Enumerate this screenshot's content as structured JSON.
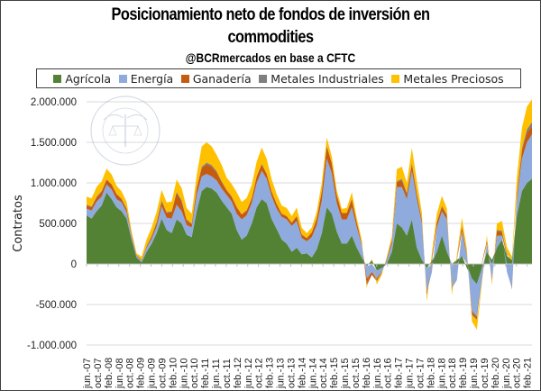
{
  "chart_data": {
    "type": "area",
    "stacked": true,
    "title": "Posicionamiento neto de fondos de inversión en commodities",
    "title_line1": "Posicionamiento neto de fondos de inversión en",
    "title_line2": "commodities",
    "subtitle": "@BCRmercados en base a CFTC",
    "xlabel": "",
    "ylabel": "Contratos",
    "ylim": [
      -1000000,
      2000000
    ],
    "yticks": [
      2000000,
      1500000,
      1000000,
      500000,
      0,
      -500000,
      -1000000
    ],
    "ytick_labels": [
      "2.000.000",
      "1.500.000",
      "1.000.000",
      "500.000",
      "0",
      "-500.000",
      "-1.000.000"
    ],
    "grid": true,
    "legend_position": "top",
    "xtick_labels": [
      "jun.-07",
      "oct.-07",
      "feb.-08",
      "jun.-08",
      "oct.-08",
      "feb.-09",
      "jun.-09",
      "oct.-09",
      "feb.-10",
      "jun.-10",
      "oct.-10",
      "feb.-11",
      "jun.-11",
      "oct.-11",
      "feb.-12",
      "jun.-12",
      "oct.-12",
      "feb.-13",
      "jun.-13",
      "oct.-13",
      "feb.-14",
      "jun.-14",
      "oct.-14",
      "feb.-15",
      "jun.-15",
      "oct.-15",
      "feb.-16",
      "jun.-16",
      "oct.-16",
      "feb.-17",
      "jun.-17",
      "oct.-17",
      "feb.-18",
      "jun.-18",
      "oct.-18",
      "feb.-19",
      "jun.-19",
      "oct.-19",
      "feb.-20",
      "jun.-20",
      "oct.-20",
      "feb.-21"
    ],
    "x_step": "2 months",
    "series": [
      {
        "name": "Agrícola",
        "color": "#548235",
        "values": [
          600000,
          560000,
          650000,
          720000,
          880000,
          800000,
          700000,
          650000,
          560000,
          300000,
          80000,
          20000,
          150000,
          250000,
          380000,
          560000,
          420000,
          380000,
          550000,
          500000,
          360000,
          330000,
          650000,
          900000,
          950000,
          930000,
          880000,
          780000,
          700000,
          620000,
          420000,
          300000,
          350000,
          500000,
          700000,
          800000,
          750000,
          550000,
          430000,
          300000,
          250000,
          150000,
          200000,
          120000,
          130000,
          80000,
          180000,
          380000,
          700000,
          620000,
          400000,
          250000,
          250000,
          350000,
          200000,
          80000,
          -30000,
          50000,
          -80000,
          -50000,
          0,
          150000,
          500000,
          450000,
          350000,
          550000,
          200000,
          50000,
          -50000,
          40000,
          150000,
          350000,
          150000,
          0,
          50000,
          100000,
          -50000,
          -180000,
          -250000,
          -50000,
          150000,
          50000,
          200000,
          300000,
          100000,
          50000,
          600000,
          900000,
          1000000,
          1050000
        ]
      },
      {
        "name": "Energía",
        "color": "#8faadc",
        "values": [
          80000,
          100000,
          120000,
          110000,
          100000,
          120000,
          100000,
          110000,
          80000,
          40000,
          20000,
          20000,
          50000,
          60000,
          80000,
          150000,
          150000,
          180000,
          180000,
          150000,
          120000,
          120000,
          200000,
          180000,
          160000,
          150000,
          150000,
          150000,
          150000,
          150000,
          200000,
          250000,
          250000,
          250000,
          300000,
          350000,
          300000,
          280000,
          250000,
          280000,
          300000,
          320000,
          330000,
          200000,
          150000,
          250000,
          300000,
          400000,
          600000,
          500000,
          350000,
          300000,
          300000,
          350000,
          250000,
          150000,
          -150000,
          -100000,
          -100000,
          -50000,
          50000,
          100000,
          450000,
          500000,
          450000,
          600000,
          600000,
          450000,
          -300000,
          -100000,
          300000,
          300000,
          400000,
          -300000,
          -200000,
          300000,
          100000,
          -400000,
          -400000,
          -150000,
          100000,
          -200000,
          150000,
          50000,
          -100000,
          -300000,
          200000,
          400000,
          500000,
          550000
        ]
      },
      {
        "name": "Ganadería",
        "color": "#c55a11",
        "values": [
          40000,
          40000,
          50000,
          60000,
          60000,
          60000,
          60000,
          40000,
          40000,
          20000,
          10000,
          10000,
          20000,
          30000,
          50000,
          60000,
          60000,
          80000,
          150000,
          120000,
          60000,
          40000,
          80000,
          100000,
          120000,
          120000,
          100000,
          80000,
          60000,
          60000,
          80000,
          60000,
          60000,
          60000,
          80000,
          80000,
          60000,
          60000,
          60000,
          40000,
          40000,
          40000,
          60000,
          40000,
          40000,
          60000,
          80000,
          120000,
          150000,
          120000,
          100000,
          80000,
          80000,
          100000,
          60000,
          20000,
          -80000,
          -30000,
          -30000,
          -10000,
          20000,
          40000,
          60000,
          80000,
          60000,
          80000,
          60000,
          40000,
          -50000,
          40000,
          60000,
          60000,
          50000,
          -20000,
          20000,
          60000,
          20000,
          -40000,
          -30000,
          20000,
          40000,
          -20000,
          60000,
          40000,
          20000,
          -20000,
          60000,
          100000,
          120000,
          100000
        ]
      },
      {
        "name": "Metales Industriales",
        "color": "#7f7f7f",
        "values": [
          10000,
          10000,
          10000,
          10000,
          5000,
          5000,
          5000,
          5000,
          5000,
          0,
          0,
          0,
          5000,
          10000,
          10000,
          15000,
          10000,
          10000,
          10000,
          15000,
          10000,
          10000,
          15000,
          20000,
          20000,
          20000,
          15000,
          10000,
          5000,
          5000,
          5000,
          5000,
          5000,
          5000,
          5000,
          5000,
          5000,
          0,
          0,
          0,
          0,
          0,
          5000,
          5000,
          0,
          0,
          5000,
          5000,
          10000,
          5000,
          0,
          0,
          0,
          5000,
          0,
          0,
          -10000,
          -5000,
          -5000,
          0,
          0,
          5000,
          10000,
          20000,
          20000,
          20000,
          15000,
          10000,
          -5000,
          0,
          10000,
          10000,
          5000,
          -5000,
          0,
          10000,
          5000,
          -10000,
          -10000,
          0,
          5000,
          0,
          10000,
          20000,
          10000,
          0,
          10000,
          30000,
          40000,
          50000
        ]
      },
      {
        "name": "Metales Preciosos",
        "color": "#ffc000",
        "values": [
          100000,
          100000,
          120000,
          120000,
          130000,
          120000,
          100000,
          90000,
          80000,
          40000,
          20000,
          40000,
          80000,
          100000,
          120000,
          130000,
          120000,
          120000,
          150000,
          150000,
          140000,
          120000,
          150000,
          250000,
          250000,
          230000,
          200000,
          200000,
          150000,
          150000,
          180000,
          150000,
          150000,
          160000,
          180000,
          200000,
          180000,
          150000,
          120000,
          100000,
          100000,
          80000,
          100000,
          80000,
          60000,
          60000,
          80000,
          100000,
          100000,
          80000,
          60000,
          50000,
          60000,
          80000,
          60000,
          40000,
          -30000,
          20000,
          -40000,
          -20000,
          20000,
          50000,
          150000,
          150000,
          120000,
          180000,
          150000,
          80000,
          -60000,
          60000,
          100000,
          120000,
          80000,
          -60000,
          40000,
          100000,
          60000,
          -80000,
          -120000,
          -40000,
          60000,
          -40000,
          80000,
          120000,
          80000,
          40000,
          200000,
          250000,
          280000,
          280000
        ]
      }
    ]
  }
}
